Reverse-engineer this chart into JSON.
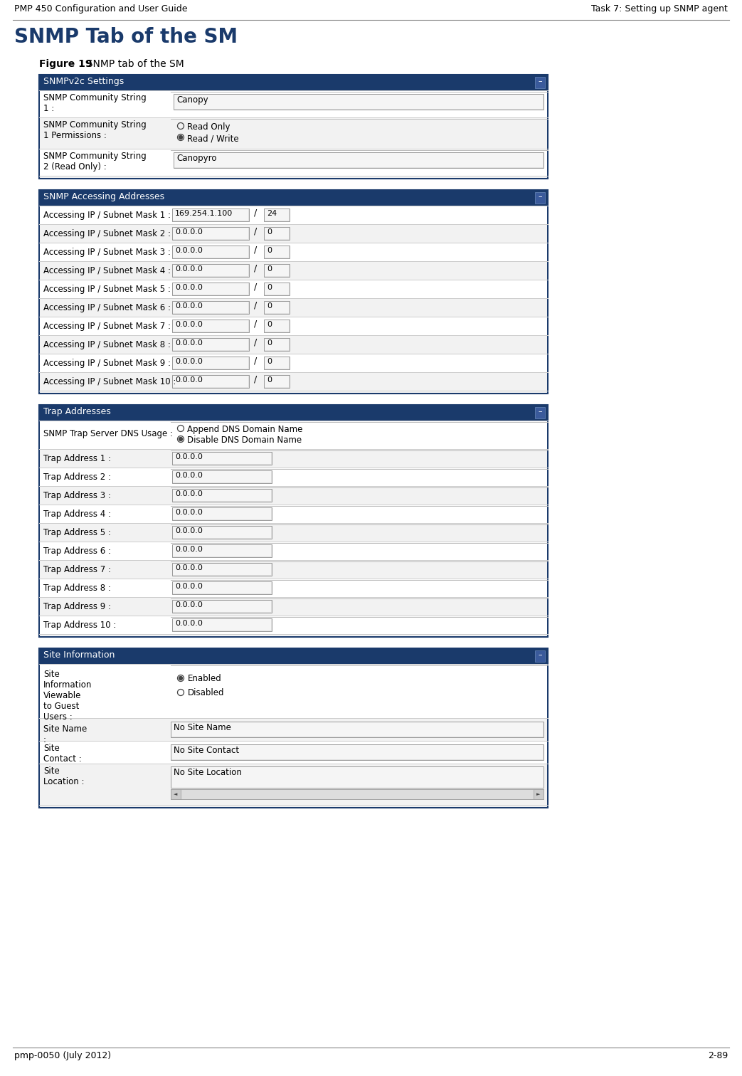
{
  "header_left": "PMP 450 Configuration and User Guide",
  "header_right": "Task 7: Setting up SNMP agent",
  "footer_left": "pmp-0050 (July 2012)",
  "footer_right": "2-89",
  "section_title": "SNMP Tab of the SM",
  "figure_label": "Figure 19",
  "figure_caption": "  SNMP tab of the SM",
  "header_bg": "#1a3a6b",
  "header_text_color": "#ffffff",
  "section_title_color": "#1a3a6b",
  "snmpv2c_title": "SNMPv2c Settings",
  "accessing_title": "SNMP Accessing Addresses",
  "trap_title": "Trap Addresses",
  "site_title": "Site Information",
  "trap_dns_label": "SNMP Trap Server DNS Usage :",
  "trap_dns_options": [
    "Append DNS Domain Name",
    "Disable DNS Domain Name"
  ],
  "trap_dns_selected": 1,
  "site_viewable_label": "Site\nInformation\nViewable\nto Guest\nUsers :",
  "site_viewable_options": [
    "Enabled",
    "Disabled"
  ],
  "site_viewable_selected": 0,
  "accessing_rows": [
    {
      "label": "Accessing IP / Subnet Mask 1 :",
      "ip": "169.254.1.100",
      "mask": "24"
    },
    {
      "label": "Accessing IP / Subnet Mask 2 :",
      "ip": "0.0.0.0",
      "mask": "0"
    },
    {
      "label": "Accessing IP / Subnet Mask 3 :",
      "ip": "0.0.0.0",
      "mask": "0"
    },
    {
      "label": "Accessing IP / Subnet Mask 4 :",
      "ip": "0.0.0.0",
      "mask": "0"
    },
    {
      "label": "Accessing IP / Subnet Mask 5 :",
      "ip": "0.0.0.0",
      "mask": "0"
    },
    {
      "label": "Accessing IP / Subnet Mask 6 :",
      "ip": "0.0.0.0",
      "mask": "0"
    },
    {
      "label": "Accessing IP / Subnet Mask 7 :",
      "ip": "0.0.0.0",
      "mask": "0"
    },
    {
      "label": "Accessing IP / Subnet Mask 8 :",
      "ip": "0.0.0.0",
      "mask": "0"
    },
    {
      "label": "Accessing IP / Subnet Mask 9 :",
      "ip": "0.0.0.0",
      "mask": "0"
    },
    {
      "label": "Accessing IP / Subnet Mask 10 :",
      "ip": "0.0.0.0",
      "mask": "0"
    }
  ],
  "trap_rows": [
    {
      "label": "Trap Address 1 :",
      "value": "0.0.0.0"
    },
    {
      "label": "Trap Address 2 :",
      "value": "0.0.0.0"
    },
    {
      "label": "Trap Address 3 :",
      "value": "0.0.0.0"
    },
    {
      "label": "Trap Address 4 :",
      "value": "0.0.0.0"
    },
    {
      "label": "Trap Address 5 :",
      "value": "0.0.0.0"
    },
    {
      "label": "Trap Address 6 :",
      "value": "0.0.0.0"
    },
    {
      "label": "Trap Address 7 :",
      "value": "0.0.0.0"
    },
    {
      "label": "Trap Address 8 :",
      "value": "0.0.0.0"
    },
    {
      "label": "Trap Address 9 :",
      "value": "0.0.0.0"
    },
    {
      "label": "Trap Address 10 :",
      "value": "0.0.0.0"
    }
  ]
}
